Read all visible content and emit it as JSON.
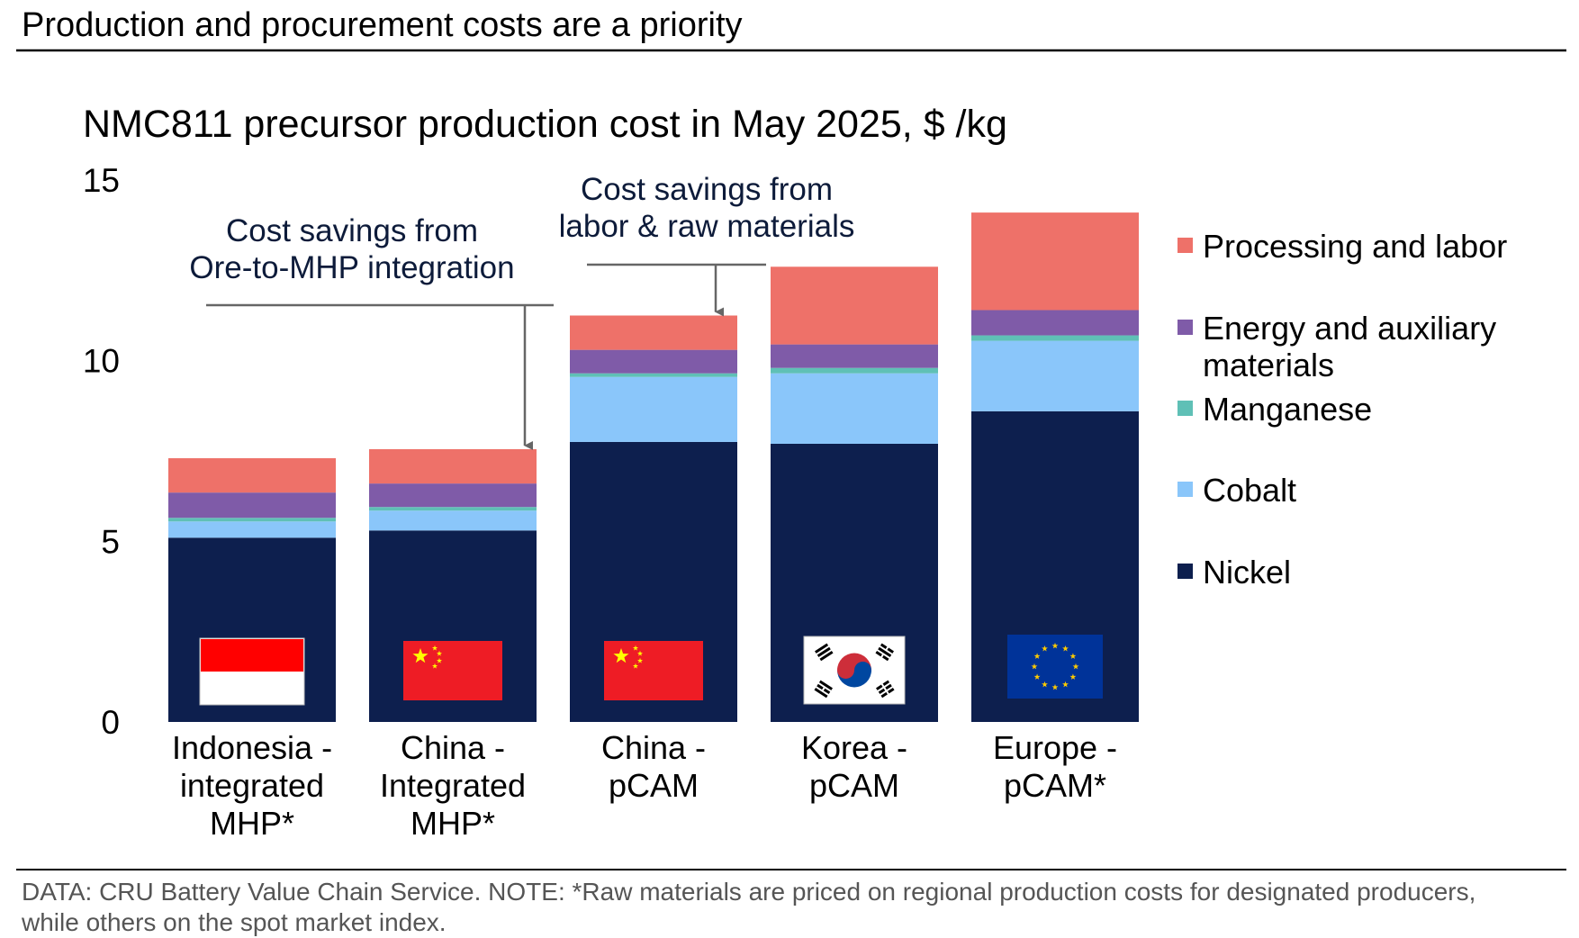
{
  "header": {
    "title": "Production and procurement costs are a priority"
  },
  "chart_data": {
    "type": "bar",
    "stacked": true,
    "title": "NMC811 precursor production cost in May 2025, $ /kg",
    "xlabel": "",
    "ylabel": "",
    "ylim": [
      0,
      15
    ],
    "yticks": [
      0,
      5,
      10,
      15
    ],
    "grid": false,
    "legend_position": "right",
    "categories": [
      [
        "Indonesia -",
        "integrated",
        "MHP*"
      ],
      [
        "China -",
        "Integrated",
        "MHP*"
      ],
      [
        "China -",
        "pCAM"
      ],
      [
        "Korea -",
        "pCAM"
      ],
      [
        "Europe -",
        "pCAM*"
      ]
    ],
    "flags": [
      "indonesia",
      "china",
      "china",
      "korea",
      "europe"
    ],
    "series": [
      {
        "name": "Nickel",
        "color": "#0d1f4e",
        "values": [
          5.1,
          5.3,
          7.75,
          7.7,
          8.6
        ]
      },
      {
        "name": "Cobalt",
        "color": "#8ac6fa",
        "values": [
          0.45,
          0.55,
          1.8,
          1.95,
          1.95
        ]
      },
      {
        "name": "Manganese",
        "color": "#5fc0b6",
        "values": [
          0.1,
          0.1,
          0.1,
          0.15,
          0.15
        ]
      },
      {
        "name": "Energy and auxiliary materials",
        "legend_lines": [
          "Energy and auxiliary",
          "materials"
        ],
        "color": "#7f5ba8",
        "values": [
          0.7,
          0.65,
          0.65,
          0.65,
          0.7
        ]
      },
      {
        "name": "Processing and labor",
        "color": "#ee7169",
        "values": [
          0.95,
          0.95,
          0.95,
          2.15,
          2.7
        ]
      }
    ],
    "annotations": [
      {
        "lines": [
          "Cost savings from",
          "Ore-to-MHP integration"
        ],
        "target": "China - Integrated MHP*"
      },
      {
        "lines": [
          "Cost savings from",
          "labor & raw materials"
        ],
        "target": "China - pCAM"
      }
    ]
  },
  "footer": {
    "note_line1": "DATA: CRU Battery Value Chain Service. NOTE: *Raw materials are priced on regional production costs for designated producers,",
    "note_line2": "while others on the spot market index."
  }
}
